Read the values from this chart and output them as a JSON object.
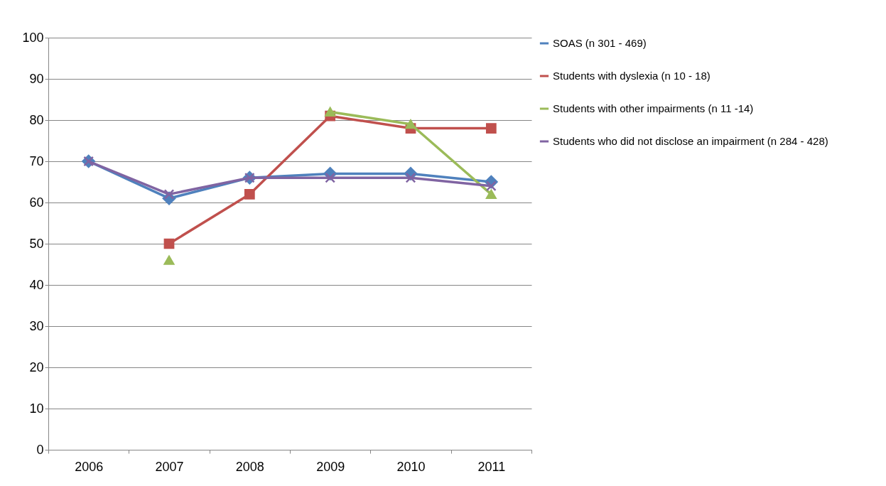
{
  "chart_data": {
    "type": "line",
    "categories": [
      "2006",
      "2007",
      "2008",
      "2009",
      "2010",
      "2011"
    ],
    "series": [
      {
        "name": "SOAS (n 301 - 469)",
        "color": "#4f81bd",
        "marker": "diamond",
        "values": [
          70,
          61,
          66,
          67,
          67,
          65
        ]
      },
      {
        "name": "Students with dyslexia (n 10 - 18)",
        "color": "#c0504d",
        "marker": "square",
        "values": [
          null,
          50,
          62,
          81,
          78,
          78
        ]
      },
      {
        "name": "Students with other impairments (n 11 -14)",
        "color": "#9bbb59",
        "marker": "triangle",
        "values": [
          null,
          46,
          null,
          82,
          79,
          62
        ]
      },
      {
        "name": "Students who did not disclose an impairment (n 284 - 428)",
        "color": "#8064a2",
        "marker": "cross",
        "values": [
          70,
          62,
          66,
          66,
          66,
          64
        ]
      }
    ],
    "ylim": [
      0,
      100
    ],
    "yticks": [
      0,
      10,
      20,
      30,
      40,
      50,
      60,
      70,
      80,
      90,
      100
    ],
    "grid": "y",
    "legend": "right",
    "line_style": "solid"
  }
}
